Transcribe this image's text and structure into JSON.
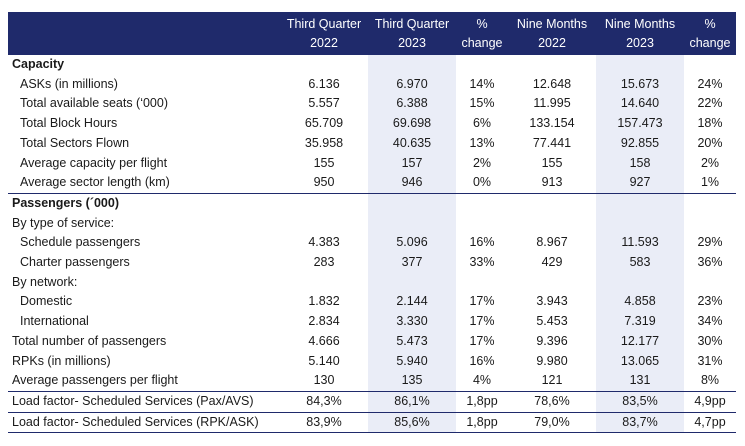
{
  "header": {
    "q3_2022": [
      "Third Quarter",
      "2022"
    ],
    "q3_2023": [
      "Third Quarter",
      "2023"
    ],
    "q_change": [
      "%",
      "change"
    ],
    "nm_2022": [
      "Nine Months",
      "2022"
    ],
    "nm_2023": [
      "Nine Months",
      "2023"
    ],
    "nm_change": [
      "%",
      "change"
    ]
  },
  "rows": [
    {
      "label": "Capacity",
      "section": true,
      "cells": [
        "",
        "",
        "",
        "",
        "",
        ""
      ]
    },
    {
      "label": "ASKs (in millions)",
      "indent": true,
      "cells": [
        "6.136",
        "6.970",
        "14%",
        "12.648",
        "15.673",
        "24%"
      ]
    },
    {
      "label": "Total available seats (‘000)",
      "indent": true,
      "cells": [
        "5.557",
        "6.388",
        "15%",
        "11.995",
        "14.640",
        "22%"
      ]
    },
    {
      "label": "Total Block Hours",
      "indent": true,
      "cells": [
        "65.709",
        "69.698",
        "6%",
        "133.154",
        "157.473",
        "18%"
      ]
    },
    {
      "label": "Total Sectors Flown",
      "indent": true,
      "cells": [
        "35.958",
        "40.635",
        "13%",
        "77.441",
        "92.855",
        "20%"
      ]
    },
    {
      "label": "Average capacity per flight",
      "indent": true,
      "cells": [
        "155",
        "157",
        "2%",
        "155",
        "158",
        "2%"
      ]
    },
    {
      "label": "Average sector length (km)",
      "indent": true,
      "cells": [
        "950",
        "946",
        "0%",
        "913",
        "927",
        "1%"
      ]
    },
    {
      "label": "Passengers (´000)",
      "section": true,
      "cells": [
        "",
        "",
        "",
        "",
        "",
        ""
      ]
    },
    {
      "label": "By type of service:",
      "cells": [
        "",
        "",
        "",
        "",
        "",
        ""
      ]
    },
    {
      "label": "Schedule passengers",
      "indent": true,
      "cells": [
        "4.383",
        "5.096",
        "16%",
        "8.967",
        "11.593",
        "29%"
      ]
    },
    {
      "label": "Charter passengers",
      "indent": true,
      "cells": [
        "283",
        "377",
        "33%",
        "429",
        "583",
        "36%"
      ]
    },
    {
      "label": "By network:",
      "cells": [
        "",
        "",
        "",
        "",
        "",
        ""
      ]
    },
    {
      "label": "Domestic",
      "indent": true,
      "cells": [
        "1.832",
        "2.144",
        "17%",
        "3.943",
        "4.858",
        "23%"
      ]
    },
    {
      "label": "International",
      "indent": true,
      "cells": [
        "2.834",
        "3.330",
        "17%",
        "5.453",
        "7.319",
        "34%"
      ]
    },
    {
      "label": "Total number of passengers",
      "cells": [
        "4.666",
        "5.473",
        "17%",
        "9.396",
        "12.177",
        "30%"
      ]
    },
    {
      "label": "RPKs (in millions)",
      "cells": [
        "5.140",
        "5.940",
        "16%",
        "9.980",
        "13.065",
        "31%"
      ]
    },
    {
      "label": "Average passengers per flight",
      "cells": [
        "130",
        "135",
        "4%",
        "121",
        "131",
        "8%"
      ]
    },
    {
      "label": "Load factor- Scheduled Services (Pax/AVS)",
      "cells": [
        "84,3%",
        "86,1%",
        "1,8pp",
        "78,6%",
        "83,5%",
        "4,9pp"
      ]
    },
    {
      "label": "Load factor- Scheduled Services (RPK/ASK)",
      "cells": [
        "83,9%",
        "85,6%",
        "1,8pp",
        "79,0%",
        "83,7%",
        "4,7pp"
      ]
    }
  ]
}
